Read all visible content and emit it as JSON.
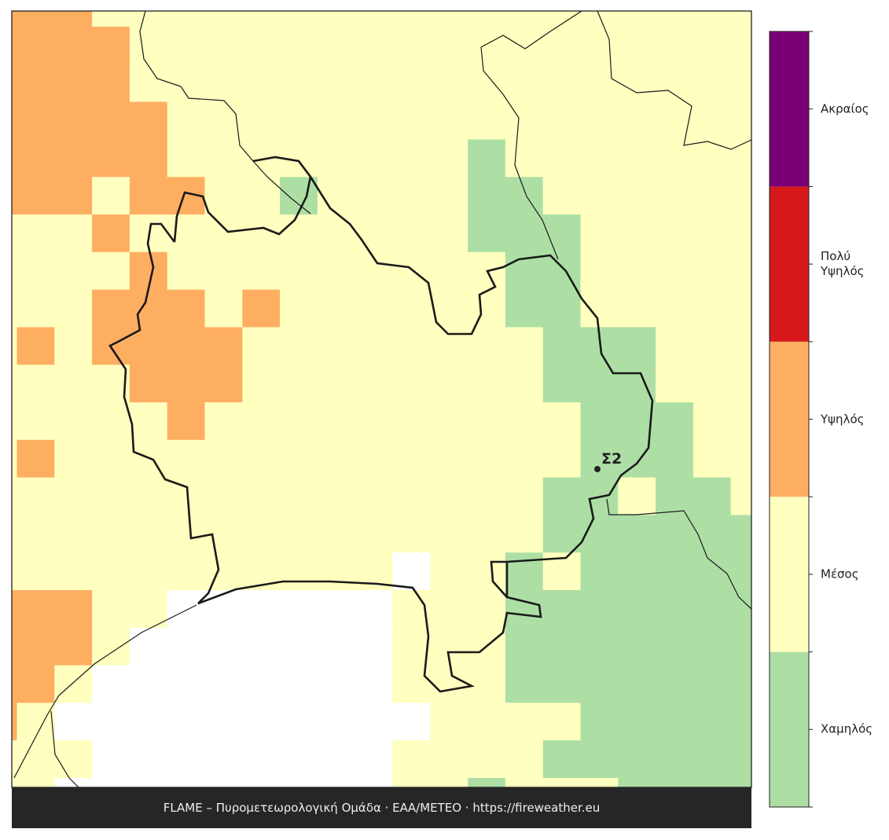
{
  "legend": {
    "levels": [
      "Χαμηλός",
      "Μέσος",
      "Υψηλός",
      "Πολύ Υψηλός",
      "Ακραίος"
    ]
  },
  "station": {
    "label": "Σ2"
  },
  "footer": {
    "text": "FLAME – Πυρομετεωρολογική Ομάδα · ΕΑΑ/METEO · https://fireweather.eu"
  }
}
